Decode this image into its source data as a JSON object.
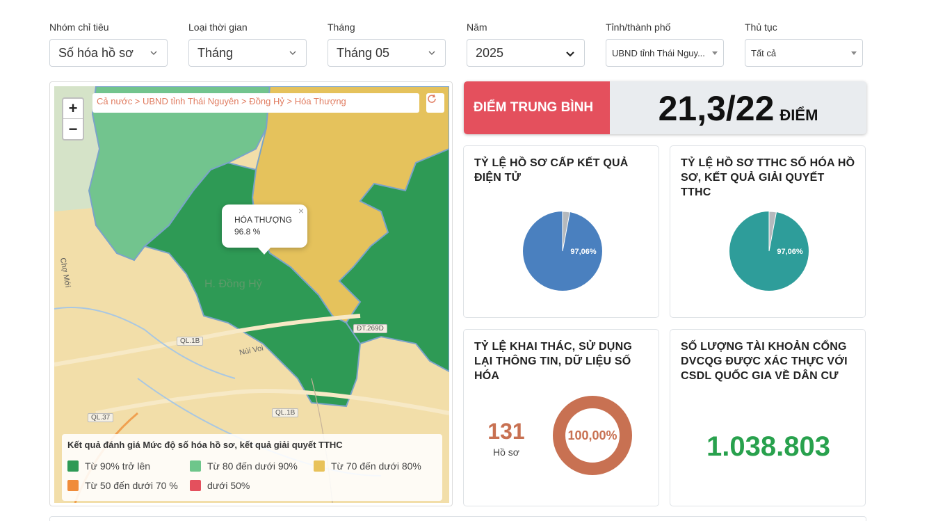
{
  "filters": [
    {
      "label": "Nhóm chỉ tiêu",
      "value": "Số hóa hồ sơ"
    },
    {
      "label": "Loại thời gian",
      "value": "Tháng"
    },
    {
      "label": "Tháng",
      "value": "Tháng 05"
    },
    {
      "label": "Năm",
      "value": "2025"
    },
    {
      "label": "Tỉnh/thành phố",
      "value": "UBND tỉnh Thái Nguy..."
    },
    {
      "label": "Thủ tục",
      "value": "Tất cả"
    }
  ],
  "map": {
    "zoom_in": "+",
    "zoom_out": "−",
    "breadcrumb": "Cả nước > UBND tỉnh Thái Nguyên > Đồng Hỷ > Hóa Thượng",
    "popup": {
      "name": "HÓA THƯỢNG",
      "value": "96.8 %",
      "close": "×"
    },
    "area_label": "H. Đồng Hỷ",
    "place_labels": {
      "cho_moi": "Chợ Mới",
      "nui_voi": "Núi Voi"
    },
    "road_labels": {
      "ql1b_a": "QL.1B",
      "ql1b_b": "QL.1B",
      "ql37": "QL.37",
      "dt269d": "ĐT.269D"
    },
    "legend": {
      "title": "Kết quả đánh giá Mức độ số hóa hồ sơ, kết quả giải quyết TTHC",
      "items": [
        {
          "label": "Từ 90% trở lên",
          "color": "#2e9a55"
        },
        {
          "label": "Từ 80 đến dưới 90%",
          "color": "#6ec68b"
        },
        {
          "label": "Từ 70 đến dưới 80%",
          "color": "#e8c25a"
        },
        {
          "label": "Từ 50 đến dưới 70 %",
          "color": "#f08c3a"
        },
        {
          "label": "dưới 50%",
          "color": "#e4505d"
        }
      ]
    }
  },
  "score": {
    "label": "ĐIỂM TRUNG BÌNH",
    "value": "21,3/22",
    "unit": "ĐIỂM"
  },
  "cards": {
    "card1": {
      "title": "TỶ LỆ HỒ SƠ CẤP KẾT QUẢ ĐIỆN TỬ",
      "percent_label": "97,06%",
      "percent": 97.06,
      "color": "#4a80bf"
    },
    "card2": {
      "title": "TỶ LỆ HỒ SƠ TTHC SỐ HÓA HỒ SƠ, KẾT QUẢ GIẢI QUYẾT TTHC",
      "percent_label": "97,06%",
      "percent": 97.06,
      "color": "#2e9d9a"
    },
    "card3": {
      "title": "TỶ LỆ KHAI THÁC, SỬ DỤNG LẠI THÔNG TIN, DỮ LIỆU SỐ HÓA",
      "count": "131",
      "count_label": "Hồ sơ",
      "donut_label": "100,00%",
      "color": "#c87152"
    },
    "card4": {
      "title": "SỐ LƯỢNG TÀI KHOẢN CỔNG DVCQG ĐƯỢC XÁC THỰC VỚI CSDL QUỐC GIA VỀ DÂN CƯ",
      "value": "1.038.803"
    }
  }
}
